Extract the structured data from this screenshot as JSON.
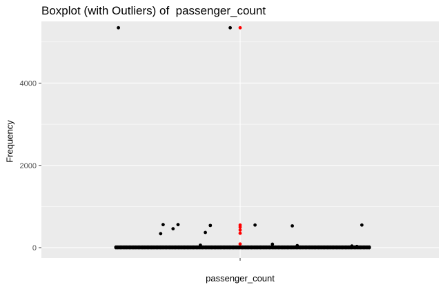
{
  "chart_data": {
    "type": "box",
    "title": "Boxplot (with Outliers) of  passenger_count",
    "xlabel": "passenger_count",
    "ylabel": "Frequency",
    "categories": [
      ""
    ],
    "ylim": [
      -250,
      5500
    ],
    "yticks": [
      0,
      2000,
      4000
    ],
    "ytick_labels": [
      "0",
      "2000",
      "4000"
    ],
    "grid": true,
    "colors": {
      "panel": "#ebebeb",
      "grid": "#ffffff",
      "box": "#333333",
      "points": "#000000",
      "outliers": "#ff0000"
    },
    "box": {
      "min": 0,
      "q1": 1,
      "median": 1,
      "q3": 2,
      "max": 3
    },
    "outliers": [
      {
        "jitter": 0.0,
        "y": 5345
      },
      {
        "jitter": 0.0,
        "y": 550
      },
      {
        "jitter": 0.0,
        "y": 500
      },
      {
        "jitter": 0.0,
        "y": 430
      },
      {
        "jitter": 0.0,
        "y": 350
      },
      {
        "jitter": 0.0,
        "y": 90
      }
    ],
    "jitter_points": [
      {
        "jitter": -0.49,
        "y": 5345
      },
      {
        "jitter": -0.04,
        "y": 5345
      },
      {
        "jitter": -0.31,
        "y": 560
      },
      {
        "jitter": -0.25,
        "y": 560
      },
      {
        "jitter": -0.32,
        "y": 340
      },
      {
        "jitter": -0.27,
        "y": 460
      },
      {
        "jitter": -0.12,
        "y": 540
      },
      {
        "jitter": -0.14,
        "y": 370
      },
      {
        "jitter": 0.06,
        "y": 550
      },
      {
        "jitter": 0.21,
        "y": 530
      },
      {
        "jitter": 0.49,
        "y": 550
      },
      {
        "jitter": -0.16,
        "y": 60
      },
      {
        "jitter": 0.13,
        "y": 85
      },
      {
        "jitter": 0.23,
        "y": 50
      },
      {
        "jitter": 0.45,
        "y": 40
      },
      {
        "jitter": 0.47,
        "y": 30
      }
    ],
    "dense_band": {
      "from_jitter": -0.5,
      "to_jitter": 0.52,
      "y_values": [
        0,
        5,
        10,
        15
      ]
    }
  }
}
